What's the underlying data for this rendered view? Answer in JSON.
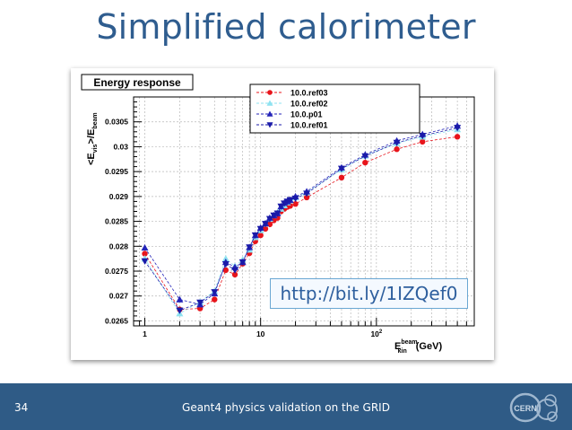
{
  "slide": {
    "title": "Simplified calorimeter",
    "url": "http://bit.ly/1IZQef0",
    "page_number": "34",
    "footer_text": "Geant4 physics validation on the GRID",
    "logo_text": "CERN",
    "colors": {
      "title": "#2f5d8f",
      "footer_bg": "#2f5b86",
      "url": "#2e5f9e"
    }
  },
  "chart_data": {
    "type": "scatter",
    "title": "Energy response",
    "ylabel_main": "<E",
    "ylabel_sub1": "vis",
    "ylabel_mid": ">/E",
    "ylabel_sub2": "beam",
    "xlabel_main": "E",
    "xlabel_sup": "beam",
    "xlabel_sub": "kin",
    "xlabel_unit": "(GeV)",
    "x_scale": "log",
    "xlim": [
      0.8,
      700
    ],
    "ylim": [
      0.0264,
      0.031
    ],
    "grid": true,
    "legend_position": "top-right",
    "x_ticks": [
      {
        "label": "1",
        "value": 1
      },
      {
        "label": "10",
        "value": 10
      },
      {
        "label": "10",
        "sup": "2",
        "value": 100
      }
    ],
    "y_ticks": [
      {
        "label": "0.0265",
        "value": 0.0265
      },
      {
        "label": "0.027",
        "value": 0.027
      },
      {
        "label": "0.0275",
        "value": 0.0275
      },
      {
        "label": "0.028",
        "value": 0.028
      },
      {
        "label": "0.0285",
        "value": 0.0285
      },
      {
        "label": "0.029",
        "value": 0.029
      },
      {
        "label": "0.0295",
        "value": 0.0295
      },
      {
        "label": "0.03",
        "value": 0.03
      },
      {
        "label": "0.0305",
        "value": 0.0305
      }
    ],
    "x": [
      1,
      2,
      3,
      4,
      5,
      6,
      7,
      8,
      9,
      10,
      11,
      12,
      13,
      14,
      15,
      16,
      17,
      18,
      20,
      25,
      50,
      80,
      150,
      250,
      500
    ],
    "series": [
      {
        "name": "10.0.ref03",
        "color": "#e8141b",
        "marker": "circle",
        "values": [
          0.02785,
          0.02673,
          0.02675,
          0.02693,
          0.02752,
          0.02743,
          0.02765,
          0.02786,
          0.0281,
          0.02822,
          0.02835,
          0.02844,
          0.02852,
          0.02857,
          0.0287,
          0.02875,
          0.02879,
          0.02881,
          0.02885,
          0.02898,
          0.02938,
          0.02968,
          0.02995,
          0.0301,
          0.0302
        ]
      },
      {
        "name": "10.0.ref02",
        "color": "#8ee2f0",
        "marker": "triangle-up",
        "values": [
          0.02775,
          0.02665,
          0.02688,
          0.0271,
          0.02775,
          0.0276,
          0.02773,
          0.02793,
          0.02818,
          0.02832,
          0.02845,
          0.02855,
          0.02862,
          0.02868,
          0.02875,
          0.02882,
          0.02888,
          0.02892,
          0.02898,
          0.02908,
          0.02954,
          0.02982,
          0.03007,
          0.0302,
          0.03035
        ]
      },
      {
        "name": "10.0.p01",
        "color": "#2424b8",
        "marker": "triangle-up",
        "values": [
          0.02797,
          0.02693,
          0.02683,
          0.02705,
          0.02768,
          0.02758,
          0.02768,
          0.02798,
          0.02822,
          0.02837,
          0.02846,
          0.02857,
          0.02862,
          0.02866,
          0.0288,
          0.02887,
          0.0289,
          0.02893,
          0.029,
          0.0291,
          0.02958,
          0.02984,
          0.03012,
          0.03025,
          0.03042
        ]
      },
      {
        "name": "10.0.ref01",
        "color": "#1a1aa8",
        "marker": "triangle-down",
        "values": [
          0.0277,
          0.02671,
          0.02687,
          0.02708,
          0.02764,
          0.02752,
          0.02768,
          0.02798,
          0.02822,
          0.02835,
          0.02845,
          0.02855,
          0.02862,
          0.02866,
          0.0288,
          0.02886,
          0.0289,
          0.02893,
          0.02896,
          0.02906,
          0.02956,
          0.02981,
          0.03008,
          0.03022,
          0.03038
        ]
      }
    ]
  }
}
